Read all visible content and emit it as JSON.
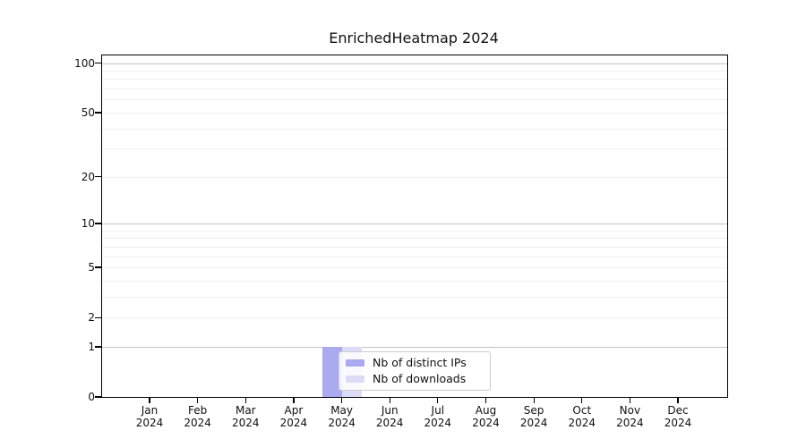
{
  "title": "EnrichedHeatmap 2024",
  "chart_data": {
    "type": "bar",
    "title": "EnrichedHeatmap 2024",
    "xlabel": "",
    "ylabel": "",
    "y_scale": "log1p",
    "ylim": [
      0,
      112
    ],
    "grid": true,
    "legend_position": "lower center (inside plot)",
    "categories": [
      "Jan 2024",
      "Feb 2024",
      "Mar 2024",
      "Apr 2024",
      "May 2024",
      "Jun 2024",
      "Jul 2024",
      "Aug 2024",
      "Sep 2024",
      "Oct 2024",
      "Nov 2024",
      "Dec 2024"
    ],
    "series": [
      {
        "name": "Nb of distinct IPs",
        "color": "#aaaaf0",
        "values": [
          0,
          0,
          0,
          0,
          1,
          0,
          0,
          0,
          0,
          0,
          0,
          0
        ]
      },
      {
        "name": "Nb of downloads",
        "color": "#dcdcf8",
        "values": [
          0,
          0,
          0,
          0,
          1,
          0,
          0,
          0,
          0,
          0,
          0,
          0
        ]
      }
    ],
    "y_ticks": [
      0,
      1,
      2,
      5,
      10,
      20,
      50,
      100
    ],
    "y_major_gridlines": [
      1,
      10,
      100
    ],
    "y_minor_gridlines": [
      2,
      3,
      4,
      5,
      6,
      7,
      8,
      9,
      20,
      30,
      40,
      50,
      60,
      70,
      80,
      90
    ]
  },
  "colors": {
    "axis": "#000000",
    "grid_major": "#c3c3c3",
    "grid_minor": "#efefef",
    "background": "#ffffff",
    "text": "#111111"
  }
}
